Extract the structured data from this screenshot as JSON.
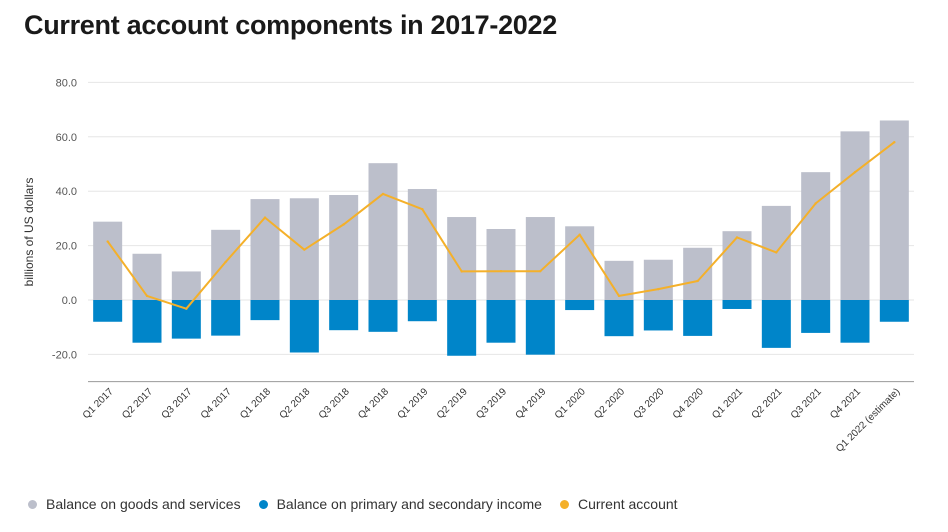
{
  "page": {
    "title": "Current account components in 2017-2022"
  },
  "colors": {
    "goods": "#bcbfcb",
    "income": "#0085c9",
    "current": "#f4b02a",
    "grid": "#e6e6e6",
    "axis": "#555555"
  },
  "chart_data": {
    "type": "bar",
    "title": "Current account components in 2017-2022",
    "ylabel": "billions of US dollars",
    "xlabel": "",
    "ylim": [
      -30,
      80
    ],
    "yticks": [
      -20,
      0,
      20,
      40,
      60,
      80
    ],
    "ytick_labels": [
      "-20.0",
      "0.0",
      "20.0",
      "40.0",
      "60.0",
      "80.0"
    ],
    "grid": true,
    "legend_position": "bottom-left",
    "categories": [
      "Q1 2017",
      "Q2 2017",
      "Q3 2017",
      "Q4 2017",
      "Q1 2018",
      "Q2 2018",
      "Q3 2018",
      "Q4 2018",
      "Q1 2019",
      "Q2 2019",
      "Q3 2019",
      "Q4 2019",
      "Q1 2020",
      "Q2 2020",
      "Q3 2020",
      "Q4 2020",
      "Q1 2021",
      "Q2 2021",
      "Q3 2021",
      "Q4 2021",
      "Q1 2022 (estimate)"
    ],
    "series": [
      {
        "name": "Balance on goods and services",
        "type": "bar",
        "values": [
          28.8,
          17.0,
          10.5,
          25.8,
          37.1,
          37.4,
          38.6,
          50.3,
          40.8,
          30.5,
          26.1,
          30.5,
          27.1,
          14.4,
          14.8,
          19.2,
          25.3,
          34.6,
          47.0,
          62.0,
          66.0
        ]
      },
      {
        "name": "Balance on primary and secondary income",
        "type": "bar",
        "values": [
          -8.0,
          -15.7,
          -14.2,
          -13.1,
          -7.4,
          -19.3,
          -11.1,
          -11.7,
          -7.8,
          -20.5,
          -15.7,
          -20.1,
          -3.7,
          -13.3,
          -11.2,
          -13.2,
          -3.3,
          -17.6,
          -12.1,
          -15.7,
          -8.0
        ]
      },
      {
        "name": "Current account",
        "type": "line",
        "values": [
          21.5,
          1.5,
          -3.2,
          14.0,
          30.3,
          18.5,
          27.8,
          39.0,
          33.4,
          10.5,
          10.6,
          10.6,
          24.0,
          1.5,
          4.0,
          7.0,
          23.0,
          17.5,
          35.5,
          47.0,
          58.0
        ]
      }
    ]
  }
}
